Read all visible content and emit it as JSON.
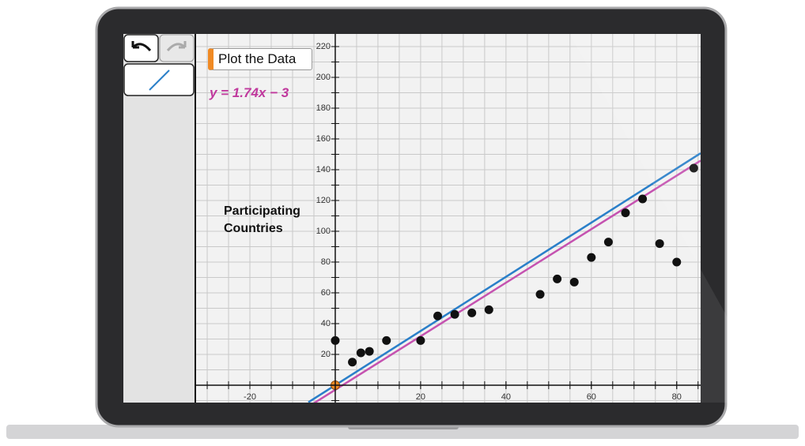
{
  "ui": {
    "button": "Plot the Data",
    "equation": "y = 1.74x − 3"
  },
  "chart_data": {
    "type": "scatter",
    "y_label": "Participating Countries",
    "xlim": [
      -32.6,
      85.6
    ],
    "ylim": [
      -11.3,
      228.2
    ],
    "xticks": [
      -20,
      20,
      40,
      60,
      80
    ],
    "yticks": [
      20,
      40,
      60,
      80,
      100,
      120,
      140,
      160,
      180,
      200,
      220
    ],
    "grid": true,
    "grid_step": {
      "x": 5,
      "y": 10
    },
    "series": [
      {
        "type": "scatter",
        "color": "#111111",
        "x": [
          0,
          4,
          6,
          8,
          12,
          20,
          24,
          28,
          32,
          36,
          48,
          52,
          56,
          60,
          64,
          68,
          72,
          76,
          80,
          84
        ],
        "values": [
          29,
          15,
          21,
          22,
          29,
          29,
          45,
          46,
          47,
          49,
          59,
          69,
          67,
          83,
          93,
          112,
          121,
          92,
          80,
          141
        ]
      },
      {
        "type": "scatter",
        "color": "#f08a24",
        "x": [
          0
        ],
        "values": [
          0
        ]
      },
      {
        "type": "line",
        "color": "#2a7fc9",
        "x": [
          -6.3,
          85.6
        ],
        "values": [
          -11.1,
          150.7
        ]
      },
      {
        "type": "line",
        "color": "#c552b0",
        "x": [
          -5,
          85.6
        ],
        "values": [
          -11.7,
          145.9
        ]
      }
    ]
  }
}
